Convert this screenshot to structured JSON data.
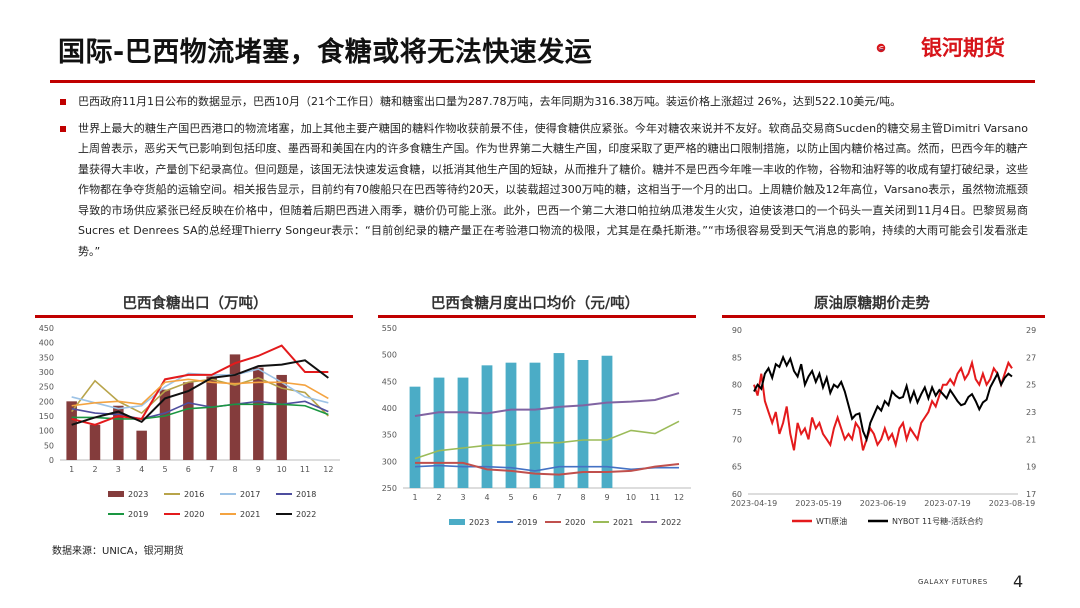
{
  "header": {
    "title": "国际-巴西物流堵塞，食糖或将无法快速发运",
    "logo_text": "银河期货"
  },
  "bullets": [
    "巴西政府11月1日公布的数据显示，巴西10月（21个工作日）糖和糖蜜出口量为287.78万吨，去年同期为316.38万吨。装运价格上涨超过 26%，达到522.10美元/吨。",
    "世界上最大的糖生产国巴西港口的物流堵塞，加上其他主要产糖国的糖料作物收获前景不佳，使得食糖供应紧张。今年对糖农来说并不友好。软商品交易商Sucden的糖交易主管Dimitri Varsano上周曾表示，恶劣天气已影响到包括印度、墨西哥和美国在内的许多食糖生产国。作为世界第二大糖生产国，印度采取了更严格的糖出口限制措施，以防止国内糖价格过高。然而，巴西今年的糖产量获得大丰收，产量创下纪录高位。但问题是，该国无法快速发运食糖，以抵消其他生产国的短缺，从而推升了糖价。糖并不是巴西今年唯一丰收的作物，谷物和油籽等的收成有望打破纪录，这些作物都在争夺货船的运输空间。相关报告显示，目前约有70艘船只在巴西等待约20天，以装载超过300万吨的糖，这相当于一个月的出口。上周糖价触及12年高位，Varsano表示，虽然物流瓶颈导致的市场供应紧张已经反映在价格中，但随着后期巴西进入雨季，糖价仍可能上涨。此外，巴西一个第二大港口帕拉纳瓜港发生火灾，迫使该港口的一个码头一直关闭到11月4日。巴黎贸易商Sucres et Denrees SA的总经理Thierry Songeur表示：“目前创纪录的糖产量正在考验港口物流的极限，尤其是在桑托斯港。”“市场很容易受到天气消息的影响，持续的大雨可能会引发看涨走势。”"
  ],
  "charts": {
    "c1_title": "巴西食糖出口（万吨）",
    "c2_title": "巴西食糖月度出口均价（元/吨）",
    "c3_title": "原油原糖期价走势"
  },
  "colors": {
    "accent": "#c00000",
    "c2023": "#843c3c",
    "c2016": "#b8a44a",
    "c2017": "#9dc3e6",
    "c2018": "#4e4e9e",
    "c2019": "#1a9641",
    "c2020": "#e31a1c",
    "c2021": "#f4a340",
    "c2022": "#111111",
    "teal": "#4bacc6",
    "blue": "#4472c4",
    "red": "#c0504d",
    "green": "#9bbb59",
    "purple": "#8064a2",
    "wti": "#e41a1c",
    "sugar": "#000000"
  },
  "chart_data": [
    {
      "type": "bar",
      "title": "巴西食糖出口（万吨）",
      "categories": [
        "1",
        "2",
        "3",
        "4",
        "5",
        "6",
        "7",
        "8",
        "9",
        "10",
        "11",
        "12"
      ],
      "ylim": [
        0,
        450
      ],
      "yticks": [
        0,
        50,
        100,
        150,
        200,
        250,
        300,
        350,
        400,
        450
      ],
      "bar_series": {
        "name": "2023",
        "values": [
          200,
          120,
          185,
          100,
          240,
          265,
          285,
          360,
          315,
          290,
          null,
          null
        ]
      },
      "line_series": [
        {
          "name": "2016",
          "values": [
            165,
            270,
            200,
            160,
            235,
            265,
            275,
            255,
            280,
            245,
            230,
            150
          ]
        },
        {
          "name": "2017",
          "values": [
            215,
            195,
            175,
            185,
            250,
            295,
            290,
            290,
            310,
            265,
            215,
            195
          ]
        },
        {
          "name": "2018",
          "values": [
            175,
            160,
            155,
            140,
            160,
            195,
            180,
            190,
            200,
            190,
            200,
            165
          ]
        },
        {
          "name": "2019",
          "values": [
            145,
            145,
            140,
            140,
            150,
            175,
            180,
            190,
            190,
            190,
            185,
            155
          ]
        },
        {
          "name": "2020",
          "values": [
            140,
            120,
            150,
            140,
            275,
            290,
            290,
            330,
            355,
            390,
            300,
            300
          ]
        },
        {
          "name": "2021",
          "values": [
            185,
            195,
            200,
            190,
            265,
            275,
            265,
            260,
            265,
            265,
            255,
            210
          ]
        },
        {
          "name": "2022",
          "values": [
            120,
            145,
            165,
            130,
            210,
            235,
            280,
            290,
            320,
            325,
            340,
            280
          ]
        }
      ],
      "legend": [
        "2023",
        "2016",
        "2017",
        "2018",
        "2019",
        "2020",
        "2021",
        "2022"
      ]
    },
    {
      "type": "bar",
      "title": "巴西食糖月度出口均价（元/吨）",
      "categories": [
        "1",
        "2",
        "3",
        "4",
        "5",
        "6",
        "7",
        "8",
        "9",
        "10",
        "11",
        "12"
      ],
      "ylim": [
        250,
        550
      ],
      "yticks": [
        250,
        300,
        350,
        400,
        450,
        500,
        550
      ],
      "bar_series": {
        "name": "2023",
        "values": [
          440,
          457,
          457,
          480,
          485,
          485,
          503,
          490,
          498,
          null,
          null,
          null
        ]
      },
      "line_series": [
        {
          "name": "2019",
          "values": [
            290,
            292,
            290,
            290,
            288,
            282,
            290,
            290,
            290,
            285,
            288,
            288
          ]
        },
        {
          "name": "2020",
          "values": [
            297,
            297,
            297,
            285,
            282,
            277,
            275,
            280,
            280,
            282,
            290,
            295
          ]
        },
        {
          "name": "2021",
          "values": [
            305,
            320,
            325,
            330,
            330,
            335,
            335,
            340,
            340,
            358,
            352,
            375
          ]
        },
        {
          "name": "2022",
          "values": [
            385,
            392,
            392,
            390,
            397,
            397,
            402,
            405,
            410,
            412,
            415,
            428
          ]
        }
      ],
      "legend": [
        "2023",
        "2019",
        "2020",
        "2021",
        "2022"
      ]
    },
    {
      "type": "line",
      "title": "原油原糖期价走势",
      "x_ticks": [
        "2023-04-19",
        "2023-05-19",
        "2023-06-19",
        "2023-07-19",
        "2023-08-19"
      ],
      "y_left": {
        "lim": [
          60,
          90
        ],
        "ticks": [
          60,
          65,
          70,
          75,
          80,
          85,
          90
        ]
      },
      "y_right": {
        "lim": [
          17,
          29
        ],
        "ticks": [
          17,
          19,
          21,
          23,
          25,
          27,
          29
        ]
      },
      "series": [
        {
          "name": "WTI原油",
          "axis": "left",
          "values": [
            80,
            78,
            82,
            77,
            75,
            73,
            75,
            71,
            73,
            76,
            71,
            68,
            73,
            71,
            72,
            70,
            74,
            72,
            73,
            71,
            70,
            69,
            72,
            74,
            72,
            70,
            71,
            70,
            73,
            72,
            68,
            70,
            72,
            71,
            69,
            70,
            72,
            70,
            71,
            69,
            72,
            73,
            70,
            72,
            71,
            70,
            73,
            74,
            75,
            77,
            76,
            78,
            80,
            80,
            81,
            80,
            82,
            83,
            81,
            82,
            84,
            81,
            80,
            82,
            80,
            81,
            83,
            82,
            80,
            82,
            84,
            83
          ]
        },
        {
          "name": "NYBOT 11号糖-活跃合约",
          "axis": "right",
          "values": [
            24.5,
            25.0,
            24.7,
            25.8,
            26.2,
            25.5,
            26.5,
            26.3,
            27.0,
            26.4,
            26.9,
            26.0,
            25.6,
            26.5,
            25.0,
            25.6,
            26.0,
            25.2,
            25.8,
            24.8,
            25.5,
            24.4,
            25.0,
            24.8,
            25.2,
            24.5,
            23.5,
            22.5,
            22.8,
            22.9,
            21.6,
            21.0,
            22.2,
            22.8,
            23.4,
            23.1,
            23.8,
            23.5,
            24.5,
            24.2,
            24.0,
            24.1,
            24.9,
            23.8,
            24.5,
            23.7,
            24.3,
            24.8,
            24.0,
            24.8,
            24.2,
            24.6,
            24.3,
            24.0,
            24.6,
            24.2,
            23.8,
            23.5,
            23.6,
            24.1,
            24.3,
            23.8,
            23.2,
            23.7,
            23.9,
            24.8,
            25.3,
            25.8,
            25.0,
            25.5,
            25.8,
            25.6
          ]
        }
      ],
      "legend": [
        "WTI原油",
        "NYBOT 11号糖-活跃合约"
      ]
    }
  ],
  "footer": {
    "source": "数据来源：UNICA，银河期货",
    "brand": "GALAXY FUTURES",
    "page": "4"
  }
}
